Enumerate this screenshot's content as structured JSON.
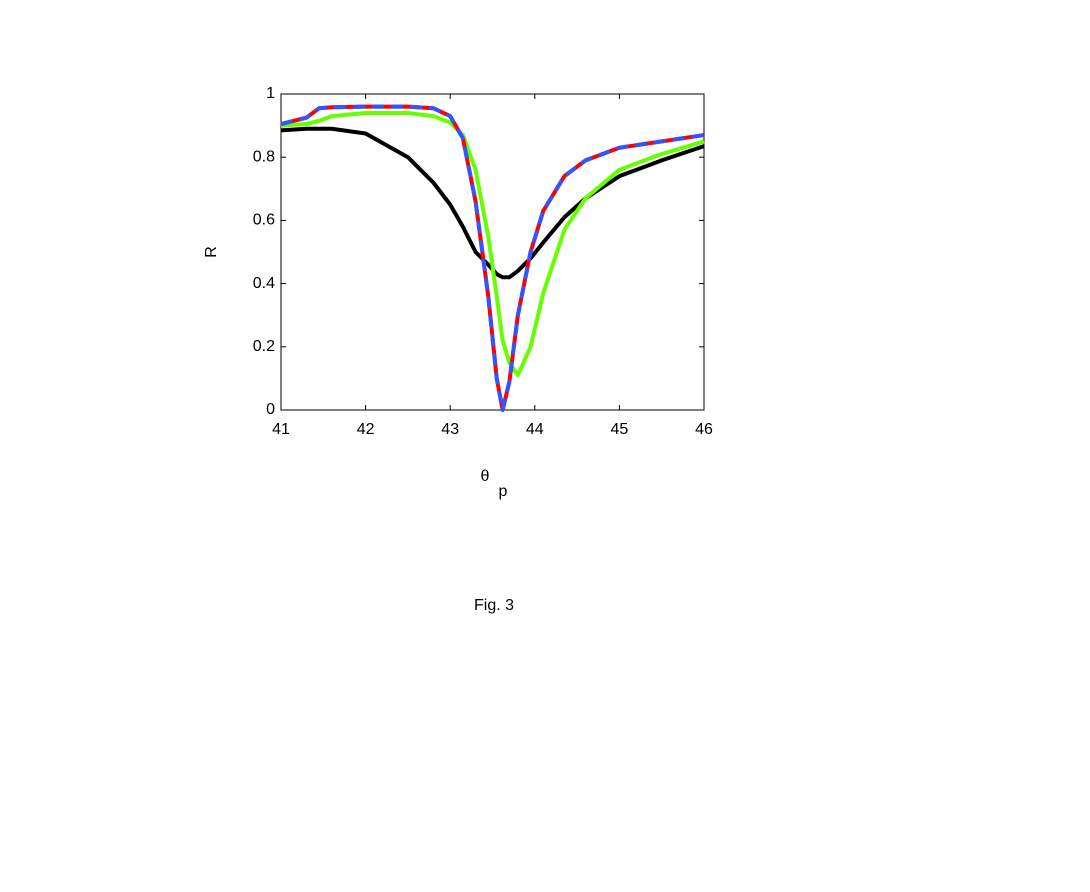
{
  "chart_data": {
    "type": "line",
    "xlabel": "θ",
    "xlabel_subscript": "p",
    "ylabel": "R",
    "x": [
      41,
      41.3,
      41.45,
      41.6,
      42,
      42.5,
      42.8,
      43,
      43.15,
      43.3,
      43.45,
      43.55,
      43.62,
      43.7,
      43.8,
      43.95,
      44.1,
      44.35,
      44.6,
      45,
      45.5,
      46
    ],
    "series": [
      {
        "color": "#000000",
        "linestyle": "-",
        "values": [
          0.885,
          0.89,
          0.89,
          0.89,
          0.875,
          0.8,
          0.72,
          0.65,
          0.58,
          0.5,
          0.46,
          0.43,
          0.42,
          0.42,
          0.44,
          0.48,
          0.53,
          0.61,
          0.67,
          0.74,
          0.79,
          0.835
        ]
      },
      {
        "color": "#66ff00",
        "linestyle": "-",
        "values": [
          0.9,
          0.905,
          0.915,
          0.93,
          0.94,
          0.94,
          0.93,
          0.91,
          0.87,
          0.76,
          0.55,
          0.36,
          0.22,
          0.15,
          0.11,
          0.2,
          0.37,
          0.57,
          0.67,
          0.76,
          0.81,
          0.85
        ]
      },
      {
        "color": "#ff0000",
        "linestyle": "-",
        "values": [
          0.905,
          0.925,
          0.955,
          0.958,
          0.96,
          0.96,
          0.955,
          0.93,
          0.86,
          0.66,
          0.36,
          0.1,
          0,
          0.09,
          0.3,
          0.5,
          0.63,
          0.74,
          0.79,
          0.83,
          0.85,
          0.87
        ]
      },
      {
        "color": "#3355ff",
        "linestyle": "--",
        "values": [
          0.905,
          0.925,
          0.955,
          0.958,
          0.96,
          0.96,
          0.955,
          0.93,
          0.86,
          0.66,
          0.36,
          0.1,
          0,
          0.09,
          0.3,
          0.5,
          0.63,
          0.74,
          0.79,
          0.83,
          0.85,
          0.87
        ]
      }
    ],
    "xlim": [
      41,
      46
    ],
    "xticks": [
      41,
      42,
      43,
      44,
      45,
      46
    ],
    "ylim": [
      0,
      1
    ],
    "yticks": [
      0,
      0.2,
      0.4,
      0.6,
      0.8,
      1
    ],
    "grid": false
  },
  "caption": "Fig. 3"
}
